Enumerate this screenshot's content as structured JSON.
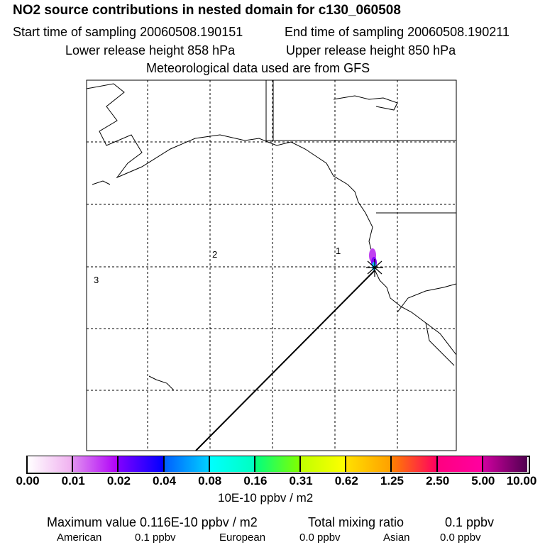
{
  "title": "NO2 source contributions in nested domain for c130_060508",
  "start_label": "Start time of sampling 20060508.190151",
  "end_label": "End time of sampling 20060508.190211",
  "lower_label": "Lower release height  858 hPa",
  "upper_label": "Upper release height  850 hPa",
  "met_label": "Meteorological data used are from GFS",
  "regions": [
    "1",
    "2",
    "3"
  ],
  "colorbar": {
    "ticks": [
      "0.00",
      "0.01",
      "0.02",
      "0.04",
      "0.08",
      "0.16",
      "0.31",
      "0.62",
      "1.25",
      "2.50",
      "5.00",
      "10.00"
    ],
    "colors": [
      [
        "#ffffff",
        "#f0b0f0"
      ],
      [
        "#e090f0",
        "#b000f8"
      ],
      [
        "#8000ff",
        "#0000ff"
      ],
      [
        "#0060ff",
        "#00d0ff"
      ],
      [
        "#00ffff",
        "#00ffc0"
      ],
      [
        "#00ff80",
        "#80ff00"
      ],
      [
        "#c0ff00",
        "#ffff00"
      ],
      [
        "#ffe000",
        "#ffa000"
      ],
      [
        "#ff8000",
        "#ff0060"
      ],
      [
        "#ff0080",
        "#ff00a0"
      ],
      [
        "#d000a0",
        "#500050"
      ]
    ],
    "unit": "10E-10 ppbv / m2"
  },
  "summary": {
    "max_label": "Maximum value  0.116E-10 ppbv / m2",
    "total_label": "Total mixing ratio",
    "total_value": "0.1 ppbv",
    "american_label": "American",
    "american_value": "0.1 ppbv",
    "european_label": "European",
    "european_value": "0.0 ppbv",
    "asian_label": "Asian",
    "asian_value": "0.0 ppbv"
  }
}
